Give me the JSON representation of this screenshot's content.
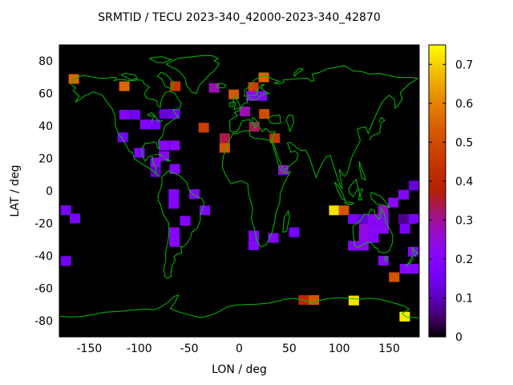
{
  "chart_data": {
    "type": "heatmap",
    "title": "SRMTID / TECU 2023-340_42000-2023-340_42870",
    "xlabel": "LON / deg",
    "ylabel": "LAT / deg",
    "xlim": [
      -180,
      180
    ],
    "ylim": [
      -90,
      90
    ],
    "xticks": [
      -150,
      -100,
      -50,
      0,
      50,
      100,
      150
    ],
    "yticks": [
      80,
      60,
      40,
      20,
      0,
      -20,
      -40,
      -60,
      -80
    ],
    "grid": false,
    "plot_bg_color": "#000000",
    "coastline_color": "#00c000",
    "colorbar": {
      "min": 0,
      "max": 0.75,
      "ticks": [
        0,
        0.1,
        0.2,
        0.3,
        0.4,
        0.5,
        0.6,
        0.7
      ],
      "palette": "gnuplot-pm3d rgbformulae 7,5,15 (black-purple-red-yellow)"
    },
    "cell_size_deg": {
      "lon": 10.4,
      "lat": 6
    },
    "cells": [
      {
        "lon": -165.5,
        "lat": 69,
        "v": 0.55
      },
      {
        "lon": -115,
        "lat": 64.5,
        "v": 0.55
      },
      {
        "lon": -64,
        "lat": 64.5,
        "v": 0.45
      },
      {
        "lon": -25,
        "lat": 63.5,
        "v": 0.28
      },
      {
        "lon": -5.5,
        "lat": 59.5,
        "v": 0.52
      },
      {
        "lon": 24.5,
        "lat": 70,
        "v": 0.55
      },
      {
        "lon": 14,
        "lat": 64,
        "v": 0.47
      },
      {
        "lon": 12,
        "lat": 58.5,
        "v": 0.22
      },
      {
        "lon": 22.5,
        "lat": 58.5,
        "v": 0.2
      },
      {
        "lon": 5.5,
        "lat": 49,
        "v": 0.28
      },
      {
        "lon": 25,
        "lat": 47.5,
        "v": 0.5
      },
      {
        "lon": -35.5,
        "lat": 39,
        "v": 0.47
      },
      {
        "lon": 15,
        "lat": 39.5,
        "v": 0.33
      },
      {
        "lon": 35.5,
        "lat": 32.5,
        "v": 0.45
      },
      {
        "lon": -14.5,
        "lat": 32.5,
        "v": 0.34
      },
      {
        "lon": -14.5,
        "lat": 26.5,
        "v": 0.52
      },
      {
        "lon": -114.8,
        "lat": 47,
        "v": 0.19
      },
      {
        "lon": -104.3,
        "lat": 47,
        "v": 0.15
      },
      {
        "lon": -94,
        "lat": 41,
        "v": 0.2
      },
      {
        "lon": -84,
        "lat": 41,
        "v": 0.16
      },
      {
        "lon": -74.9,
        "lat": 47.5,
        "v": 0.12
      },
      {
        "lon": -64.5,
        "lat": 47.5,
        "v": 0.15
      },
      {
        "lon": -116.5,
        "lat": 33,
        "v": 0.17
      },
      {
        "lon": -99.8,
        "lat": 23.5,
        "v": 0.19
      },
      {
        "lon": -75.4,
        "lat": 28,
        "v": 0.22
      },
      {
        "lon": -75.4,
        "lat": 21.5,
        "v": 0.22
      },
      {
        "lon": -64.8,
        "lat": 28,
        "v": 0.22
      },
      {
        "lon": -83.8,
        "lat": 17.5,
        "v": 0.22
      },
      {
        "lon": -83.8,
        "lat": 11.5,
        "v": 0.1
      },
      {
        "lon": -64.5,
        "lat": 13.5,
        "v": 0.2
      },
      {
        "lon": -65.5,
        "lat": -2,
        "v": 0.2
      },
      {
        "lon": -65.5,
        "lat": -8,
        "v": 0.2
      },
      {
        "lon": -44.9,
        "lat": -2,
        "v": 0.2
      },
      {
        "lon": -34.5,
        "lat": -12,
        "v": 0.2
      },
      {
        "lon": -54.1,
        "lat": -18.5,
        "v": 0.2
      },
      {
        "lon": -65,
        "lat": -25.5,
        "v": 0.2
      },
      {
        "lon": -64.8,
        "lat": -31.5,
        "v": 0.22
      },
      {
        "lon": -173.5,
        "lat": -11.9,
        "v": 0.17
      },
      {
        "lon": -164.4,
        "lat": -17,
        "v": 0.17
      },
      {
        "lon": -173.5,
        "lat": -43.2,
        "v": 0.15
      },
      {
        "lon": 44.1,
        "lat": 12.9,
        "v": 0.26
      },
      {
        "lon": 14.4,
        "lat": -27.5,
        "v": 0.2
      },
      {
        "lon": 14.4,
        "lat": -33.5,
        "v": 0.2
      },
      {
        "lon": 34.1,
        "lat": -29,
        "v": 0.2
      },
      {
        "lon": 54.9,
        "lat": -25.5,
        "v": 0.17
      },
      {
        "lon": 95,
        "lat": -12,
        "v": 0.72
      },
      {
        "lon": 104.6,
        "lat": -12,
        "v": 0.52
      },
      {
        "lon": 143.9,
        "lat": -12,
        "v": 0.26
      },
      {
        "lon": 154,
        "lat": -7.2,
        "v": 0.22
      },
      {
        "lon": 164.4,
        "lat": -2.3,
        "v": 0.2
      },
      {
        "lon": 174.8,
        "lat": 3.3,
        "v": 0.12
      },
      {
        "lon": 113.9,
        "lat": -17.3,
        "v": 0.17
      },
      {
        "lon": 123.5,
        "lat": -17.3,
        "v": 0.12
      },
      {
        "lon": 133.9,
        "lat": -17.3,
        "v": 0.22
      },
      {
        "lon": 144.3,
        "lat": -17.3,
        "v": 0.22
      },
      {
        "lon": 164.2,
        "lat": -17.3,
        "v": 0.07
      },
      {
        "lon": 174.6,
        "lat": -17.3,
        "v": 0.17
      },
      {
        "lon": 125.1,
        "lat": -23.3,
        "v": 0.25
      },
      {
        "lon": 134.3,
        "lat": -23.3,
        "v": 0.22
      },
      {
        "lon": 144.3,
        "lat": -23.3,
        "v": 0.22
      },
      {
        "lon": 165.6,
        "lat": -23.3,
        "v": 0.17
      },
      {
        "lon": 124.9,
        "lat": -29,
        "v": 0.24
      },
      {
        "lon": 134.3,
        "lat": -29,
        "v": 0.2
      },
      {
        "lon": 113.9,
        "lat": -33.8,
        "v": 0.2
      },
      {
        "lon": 124.3,
        "lat": -33.8,
        "v": 0.22
      },
      {
        "lon": 174,
        "lat": -37.5,
        "v": 0.2
      },
      {
        "lon": 165.6,
        "lat": -48,
        "v": 0.22
      },
      {
        "lon": 174.6,
        "lat": -48,
        "v": 0.2
      },
      {
        "lon": 144.3,
        "lat": -43,
        "v": 0.22
      },
      {
        "lon": 155,
        "lat": -53.2,
        "v": 0.52
      },
      {
        "lon": 64.4,
        "lat": -67.3,
        "v": 0.4
      },
      {
        "lon": 74.6,
        "lat": -67.3,
        "v": 0.52
      },
      {
        "lon": 114.6,
        "lat": -67.6,
        "v": 0.72
      },
      {
        "lon": 165.5,
        "lat": -77.5,
        "v": 0.73
      }
    ]
  }
}
